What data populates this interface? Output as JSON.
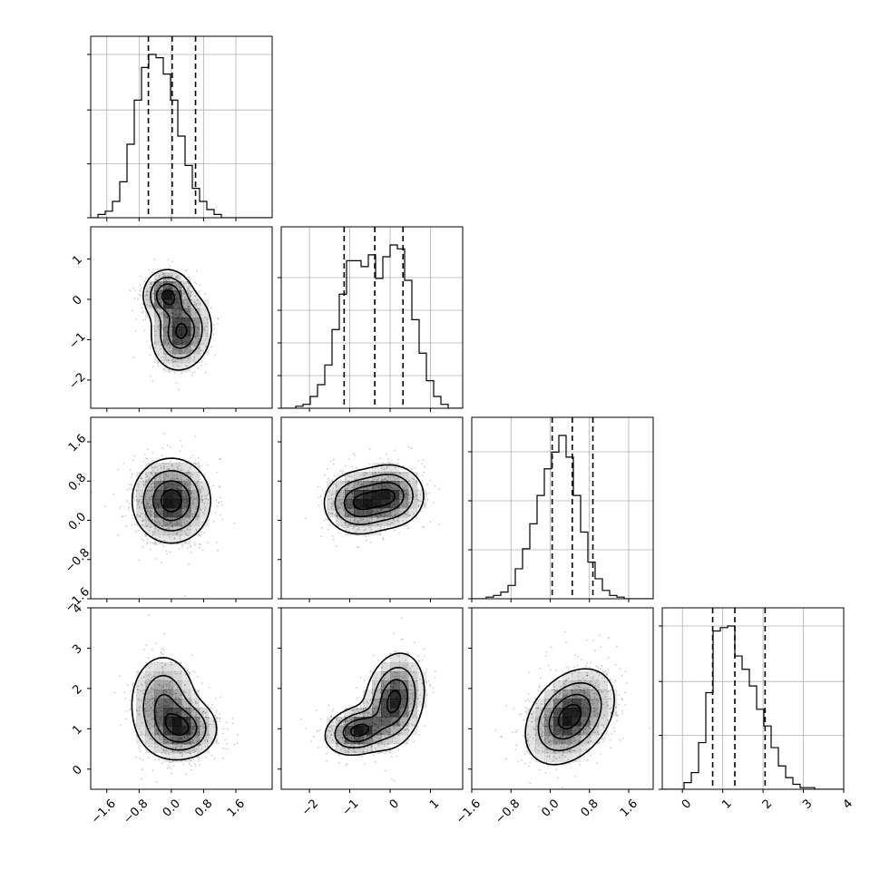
{
  "chart_data": {
    "type": "corner",
    "style": {
      "line_color": "#000000",
      "grid_color": "#b0b0b0",
      "point_color": "#555555",
      "background": "#ffffff"
    },
    "grid": true,
    "parameters": [
      {
        "index": 0,
        "range": [
          -2.0,
          2.5
        ],
        "ticks": [
          -1.6,
          -0.8,
          0.0,
          0.8,
          1.6
        ],
        "tick_labels": [
          "−1.6",
          "−0.8",
          "0.0",
          "0.8",
          "1.6"
        ]
      },
      {
        "index": 1,
        "range": [
          -2.7,
          1.8
        ],
        "ticks": [
          -2,
          -1,
          0,
          1
        ],
        "tick_labels": [
          "−2",
          "−1",
          "0",
          "1"
        ]
      },
      {
        "index": 2,
        "range": [
          -1.6,
          2.1
        ],
        "ticks": [
          -1.6,
          -0.8,
          0.0,
          0.8,
          1.6
        ],
        "tick_labels": [
          "−1.6",
          "−0.8",
          "0.0",
          "0.8",
          "1.6"
        ]
      },
      {
        "index": 3,
        "range": [
          -0.5,
          4.0
        ],
        "ticks": [
          0,
          1,
          2,
          3,
          4
        ],
        "tick_labels": [
          "0",
          "1",
          "2",
          "3",
          "4"
        ]
      }
    ],
    "histograms": [
      {
        "param": 0,
        "bin_start": -2.0,
        "bin_width": 0.18,
        "counts": [
          0,
          2,
          4,
          10,
          22,
          45,
          72,
          92,
          100,
          98,
          88,
          72,
          50,
          32,
          18,
          10,
          5,
          2,
          0,
          0,
          0,
          0,
          0,
          0,
          0
        ],
        "quantiles": [
          -0.57,
          0.02,
          0.6
        ],
        "grid_levels": [
          0.33,
          0.66,
          1.0
        ]
      },
      {
        "param": 1,
        "bin_start": -2.7,
        "bin_width": 0.18,
        "counts": [
          0,
          0,
          1,
          2,
          6,
          12,
          22,
          40,
          58,
          75,
          75,
          72,
          78,
          66,
          77,
          83,
          81,
          65,
          45,
          28,
          14,
          6,
          2,
          0,
          0
        ],
        "quantiles": [
          -1.14,
          -0.38,
          0.32
        ],
        "grid_levels": [
          0.2,
          0.4,
          0.6,
          0.8
        ]
      },
      {
        "param": 2,
        "bin_start": -1.6,
        "bin_width": 0.148,
        "counts": [
          0,
          0,
          1,
          2,
          4,
          8,
          18,
          30,
          45,
          62,
          78,
          88,
          98,
          85,
          62,
          40,
          22,
          12,
          5,
          2,
          1,
          0,
          0,
          0,
          0
        ],
        "quantiles": [
          0.04,
          0.45,
          0.87
        ],
        "grid_levels": [
          0.3,
          0.6,
          0.9
        ]
      },
      {
        "param": 3,
        "bin_start": -0.5,
        "bin_width": 0.18,
        "counts": [
          0,
          0,
          0,
          4,
          10,
          28,
          58,
          95,
          97,
          98,
          80,
          72,
          62,
          48,
          38,
          25,
          14,
          7,
          3,
          1,
          1,
          0,
          0,
          0,
          0
        ],
        "quantiles": [
          0.75,
          1.3,
          2.05
        ],
        "grid_levels": [
          0.33,
          0.66,
          1.0
        ]
      }
    ],
    "pairs": [
      {
        "x": 0,
        "y": 1,
        "components": [
          {
            "mean": [
              -0.1,
              0.1
            ],
            "sigma": [
              0.28,
              0.3
            ],
            "rho": 0.0,
            "weight": 1.0
          },
          {
            "mean": [
              0.25,
              -0.8
            ],
            "sigma": [
              0.35,
              0.45
            ],
            "rho": 0.1,
            "weight": 1.0
          }
        ]
      },
      {
        "x": 0,
        "y": 2,
        "components": [
          {
            "mean": [
              0.0,
              0.4
            ],
            "sigma": [
              0.45,
              0.4
            ],
            "rho": 0.0,
            "weight": 1.0
          }
        ]
      },
      {
        "x": 0,
        "y": 3,
        "components": [
          {
            "mean": [
              -0.2,
              1.6
            ],
            "sigma": [
              0.4,
              0.6
            ],
            "rho": 0.0,
            "weight": 0.9
          },
          {
            "mean": [
              0.3,
              1.0
            ],
            "sigma": [
              0.4,
              0.35
            ],
            "rho": 0.0,
            "weight": 1.1
          }
        ]
      },
      {
        "x": 1,
        "y": 2,
        "components": [
          {
            "mean": [
              -0.8,
              0.35
            ],
            "sigma": [
              0.4,
              0.3
            ],
            "rho": 0.0,
            "weight": 1.0
          },
          {
            "mean": [
              0.0,
              0.5
            ],
            "sigma": [
              0.4,
              0.3
            ],
            "rho": 0.0,
            "weight": 1.0
          }
        ]
      },
      {
        "x": 1,
        "y": 3,
        "components": [
          {
            "mean": [
              -0.8,
              0.95
            ],
            "sigma": [
              0.38,
              0.28
            ],
            "rho": 0.2,
            "weight": 1.0
          },
          {
            "mean": [
              0.1,
              1.7
            ],
            "sigma": [
              0.35,
              0.55
            ],
            "rho": 0.2,
            "weight": 1.0
          }
        ]
      },
      {
        "x": 2,
        "y": 3,
        "components": [
          {
            "mean": [
              0.4,
              1.3
            ],
            "sigma": [
              0.42,
              0.55
            ],
            "rho": 0.35,
            "weight": 1.0
          }
        ]
      }
    ]
  }
}
